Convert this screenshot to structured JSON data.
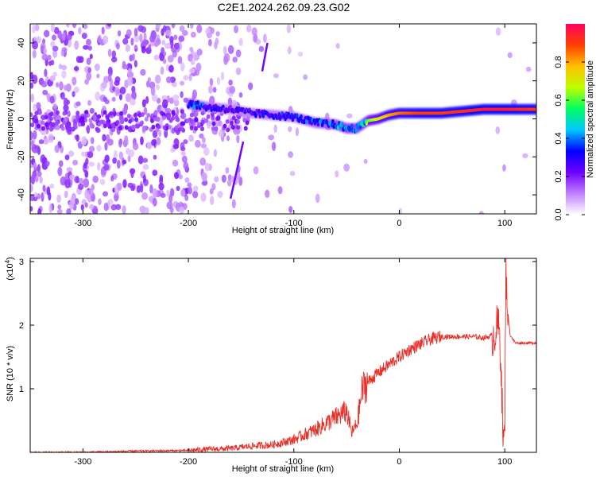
{
  "title": "C2E1.2024.262.09.23.G02",
  "chart_data": [
    {
      "type": "heatmap",
      "xlabel": "Height of straight line (km)",
      "ylabel": "Frequency (Hz)",
      "xlim": [
        -350,
        130
      ],
      "ylim": [
        -50,
        50
      ],
      "x_ticks": [
        -300,
        -200,
        -100,
        0,
        100
      ],
      "y_ticks": [
        -40,
        -20,
        0,
        20,
        40
      ],
      "colorbar": {
        "label": "Normalized spectral amplitude",
        "range": [
          0,
          1
        ],
        "ticks": [
          0.0,
          0.2,
          0.4,
          0.6,
          0.8
        ],
        "colormap": [
          "#ffffff",
          "#c080ff",
          "#7000ff",
          "#0000ff",
          "#00c8ff",
          "#00ff60",
          "#c0ff00",
          "#ffc000",
          "#ff4000",
          "#ff0060"
        ]
      },
      "ridge": {
        "x": [
          -200,
          -180,
          -160,
          -140,
          -120,
          -100,
          -80,
          -60,
          -50,
          -40,
          -30,
          -20,
          -10,
          0,
          20,
          40,
          60,
          80,
          100,
          120,
          130
        ],
        "y": [
          8,
          6,
          5,
          3,
          2,
          1,
          -2,
          -3,
          -5,
          -5,
          -1,
          0,
          2,
          3,
          3,
          3,
          4,
          5,
          5,
          5,
          5
        ],
        "amplitude": [
          0.45,
          0.35,
          0.3,
          0.3,
          0.35,
          0.35,
          0.4,
          0.45,
          0.5,
          0.5,
          0.6,
          0.7,
          0.8,
          0.85,
          0.9,
          0.9,
          0.92,
          0.95,
          0.95,
          0.92,
          0.9
        ]
      },
      "diagonal_streak": {
        "x": [
          -160,
          -148
        ],
        "y": [
          -42,
          -12
        ]
      },
      "diagonal_streak_2": {
        "x": [
          -130,
          -125
        ],
        "y": [
          25,
          40
        ]
      }
    },
    {
      "type": "line",
      "xlabel": "Height of straight line (km)",
      "ylabel": "SNR (10 * v/v)",
      "y_multiplier": "(x10",
      "y_multiplier_exp": "4",
      "xlim": [
        -350,
        130
      ],
      "ylim": [
        0,
        3.05
      ],
      "x_ticks": [
        -300,
        -200,
        -100,
        0,
        100
      ],
      "y_ticks": [
        1,
        2,
        3
      ],
      "color": "#e8302a",
      "series": [
        {
          "x": [
            -350,
            -300,
            -250,
            -200,
            -180,
            -160,
            -140,
            -120,
            -100,
            -90,
            -80,
            -70,
            -60,
            -50,
            -45,
            -40,
            -35,
            -30,
            -20,
            -10,
            0,
            10,
            20,
            30,
            40,
            50,
            60,
            70,
            80,
            85,
            90,
            93,
            95,
            97,
            98,
            99,
            100,
            101,
            103,
            105,
            110,
            120,
            130
          ],
          "y": [
            0.0,
            0.0,
            0.02,
            0.03,
            0.05,
            0.06,
            0.1,
            0.12,
            0.2,
            0.28,
            0.35,
            0.45,
            0.55,
            0.65,
            0.3,
            0.45,
            1.0,
            1.1,
            1.25,
            1.38,
            1.5,
            1.62,
            1.7,
            1.78,
            1.82,
            1.82,
            1.82,
            1.82,
            1.8,
            1.82,
            1.85,
            2.0,
            1.9,
            1.2,
            0.4,
            0.1,
            0.3,
            2.9,
            2.2,
            1.85,
            1.72,
            1.72,
            1.72
          ]
        }
      ]
    }
  ]
}
